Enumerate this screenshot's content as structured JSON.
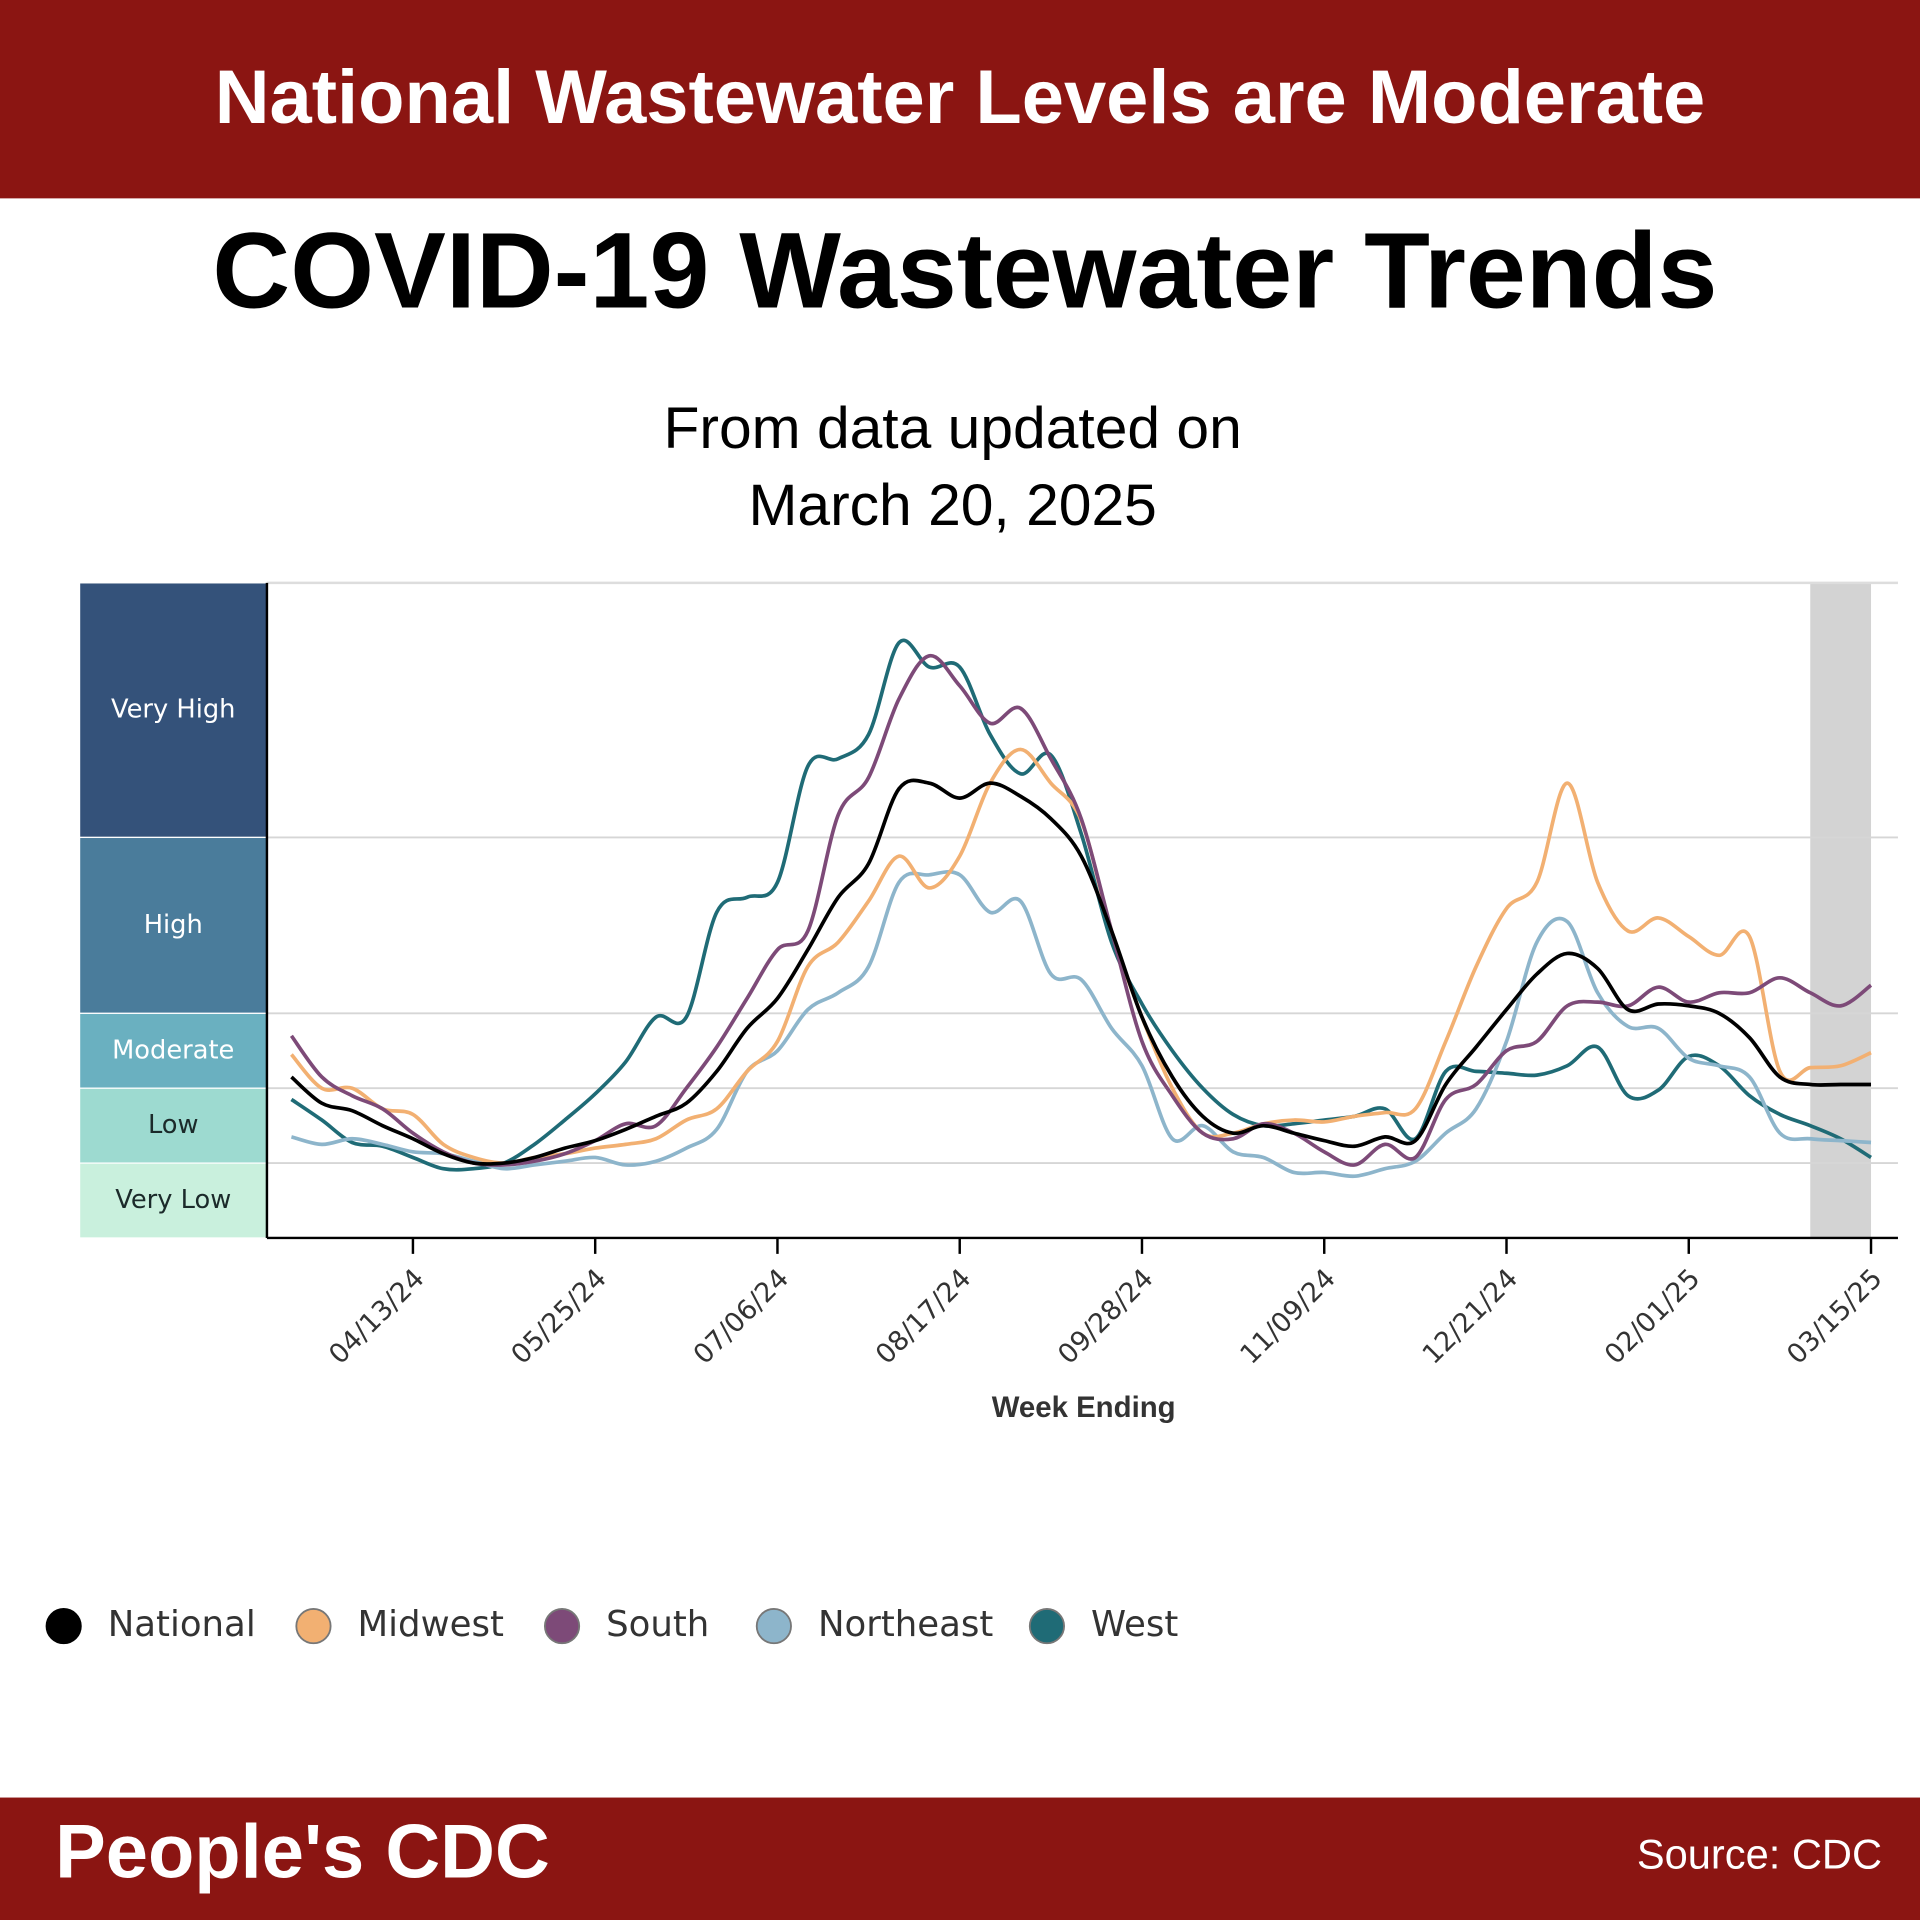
{
  "header": {
    "banner": "National Wastewater Levels are Moderate"
  },
  "chart_data": {
    "type": "line",
    "title": "COVID-19 Wastewater Trends",
    "subtitle": [
      "From data updated on",
      "March 20, 2025"
    ],
    "xlabel": "Week Ending",
    "x": [
      "03/16/24",
      "03/23/24",
      "03/30/24",
      "04/06/24",
      "04/13/24",
      "04/20/24",
      "04/27/24",
      "05/04/24",
      "05/11/24",
      "05/18/24",
      "05/25/24",
      "06/01/24",
      "06/08/24",
      "06/15/24",
      "06/22/24",
      "06/29/24",
      "07/06/24",
      "07/13/24",
      "07/20/24",
      "07/27/24",
      "08/03/24",
      "08/10/24",
      "08/17/24",
      "08/24/24",
      "08/31/24",
      "09/07/24",
      "09/14/24",
      "09/21/24",
      "09/28/24",
      "10/05/24",
      "10/12/24",
      "10/19/24",
      "10/26/24",
      "11/02/24",
      "11/09/24",
      "11/16/24",
      "11/23/24",
      "11/30/24",
      "12/07/24",
      "12/14/24",
      "12/21/24",
      "12/28/24",
      "01/04/25",
      "01/11/25",
      "01/18/25",
      "01/25/25",
      "02/01/25",
      "02/08/25",
      "02/15/25",
      "02/22/25",
      "03/01/25",
      "03/08/25",
      "03/15/25"
    ],
    "xticks": [
      "04/13/24",
      "05/25/24",
      "07/06/24",
      "08/17/24",
      "09/28/24",
      "11/09/24",
      "12/21/24",
      "02/01/25",
      "03/15/25"
    ],
    "ylim": [
      0,
      17.5
    ],
    "grid": true,
    "levels": [
      {
        "name": "Very High",
        "from": 10.7,
        "to": 17.5,
        "color": "#34527a"
      },
      {
        "name": "High",
        "from": 6,
        "to": 10.7,
        "color": "#4a7c9b"
      },
      {
        "name": "Moderate",
        "from": 4,
        "to": 6,
        "color": "#6ab0c0"
      },
      {
        "name": "Low",
        "from": 2,
        "to": 4,
        "color": "#9ddad0"
      },
      {
        "name": "Very Low",
        "from": 0,
        "to": 2,
        "color": "#c9f0dd"
      }
    ],
    "series": [
      {
        "name": "National",
        "color": "#000000",
        "values": [
          4.3,
          3.6,
          3.4,
          3.0,
          2.65,
          2.25,
          2.0,
          2.0,
          2.15,
          2.4,
          2.6,
          2.9,
          3.25,
          3.6,
          4.45,
          5.6,
          6.4,
          7.7,
          9.1,
          10.0,
          12.0,
          12.15,
          11.75,
          12.15,
          11.8,
          11.2,
          10.2,
          8.2,
          5.9,
          4.3,
          3.25,
          2.8,
          3.0,
          2.8,
          2.6,
          2.45,
          2.7,
          2.6,
          4.1,
          5.1,
          6.1,
          7.05,
          7.6,
          7.2,
          6.1,
          6.25,
          6.2,
          6.0,
          5.35,
          4.3,
          4.1,
          4.1,
          4.1
        ]
      },
      {
        "name": "Midwest",
        "color": "#f2b072",
        "values": [
          4.9,
          4.0,
          4.0,
          3.45,
          3.3,
          2.5,
          2.15,
          2.0,
          2.15,
          2.25,
          2.4,
          2.5,
          2.65,
          3.15,
          3.45,
          4.45,
          5.25,
          7.25,
          7.9,
          9.0,
          10.2,
          9.35,
          10.2,
          12.15,
          13.05,
          12.15,
          11.15,
          8.2,
          5.9,
          4.0,
          2.8,
          2.8,
          3.05,
          3.15,
          3.1,
          3.25,
          3.35,
          3.45,
          5.25,
          7.25,
          8.8,
          9.5,
          12.15,
          9.5,
          8.2,
          8.55,
          8.05,
          7.55,
          8.05,
          4.45,
          4.55,
          4.6,
          4.95
        ]
      },
      {
        "name": "South",
        "color": "#7d4a78",
        "values": [
          5.4,
          4.3,
          3.8,
          3.45,
          2.8,
          2.3,
          2.0,
          1.95,
          2.05,
          2.25,
          2.6,
          3.05,
          3.0,
          4.0,
          5.1,
          6.4,
          7.7,
          8.2,
          11.3,
          12.3,
          14.4,
          15.55,
          14.75,
          13.75,
          14.15,
          12.8,
          11.2,
          8.2,
          5.25,
          3.8,
          2.8,
          2.65,
          3.05,
          2.8,
          2.3,
          1.95,
          2.5,
          2.15,
          3.7,
          4.1,
          5.0,
          5.25,
          6.2,
          6.3,
          6.2,
          6.7,
          6.3,
          6.55,
          6.55,
          6.95,
          6.55,
          6.2,
          6.75
        ]
      },
      {
        "name": "Northeast",
        "color": "#8db5cb",
        "values": [
          2.7,
          2.5,
          2.65,
          2.5,
          2.3,
          2.25,
          2.05,
          1.85,
          1.95,
          2.05,
          2.15,
          1.95,
          2.05,
          2.4,
          2.9,
          4.45,
          5.0,
          6.1,
          6.55,
          7.25,
          9.5,
          9.7,
          9.7,
          8.7,
          9.0,
          7.05,
          6.9,
          5.6,
          4.6,
          2.65,
          3.0,
          2.3,
          2.15,
          1.75,
          1.75,
          1.65,
          1.85,
          2.05,
          2.8,
          3.45,
          5.25,
          7.9,
          8.45,
          6.55,
          5.65,
          5.6,
          4.8,
          4.6,
          4.3,
          2.8,
          2.65,
          2.6,
          2.55
        ]
      },
      {
        "name": "West",
        "color": "#1f6b76",
        "values": [
          3.7,
          3.15,
          2.55,
          2.45,
          2.15,
          1.85,
          1.85,
          2.0,
          2.5,
          3.15,
          3.85,
          4.7,
          5.9,
          5.9,
          8.7,
          9.1,
          9.5,
          12.6,
          12.8,
          13.45,
          15.9,
          15.25,
          15.25,
          13.45,
          12.4,
          12.9,
          10.8,
          7.9,
          6.25,
          5.0,
          4.0,
          3.3,
          3.0,
          3.05,
          3.15,
          3.25,
          3.45,
          2.65,
          4.45,
          4.45,
          4.4,
          4.35,
          4.6,
          5.1,
          3.8,
          3.95,
          4.85,
          4.6,
          3.8,
          3.3,
          3.0,
          2.65,
          2.15
        ]
      }
    ]
  },
  "footer": {
    "brand": "People's CDC",
    "source": "Source: CDC"
  }
}
